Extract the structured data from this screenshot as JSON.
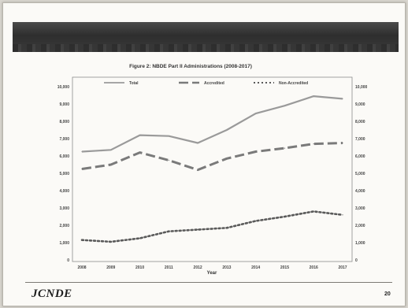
{
  "slide": {
    "logo_text": "JCNDE",
    "logo_subtext": "",
    "copyright": "",
    "page_number": "20"
  },
  "chart_data": {
    "type": "line",
    "title": "Figure 2: NBDE Part II Administrations (2008-2017)",
    "xlabel": "Year",
    "ylabel": "",
    "x": [
      "2008",
      "2009",
      "2010",
      "2011",
      "2012",
      "2013",
      "2014",
      "2015",
      "2016",
      "2017"
    ],
    "ylim": [
      0,
      10000
    ],
    "y_ticks": [
      "0",
      "1,000",
      "2,000",
      "3,000",
      "4,000",
      "5,000",
      "6,000",
      "7,000",
      "8,000",
      "9,000",
      "10,000"
    ],
    "grid": false,
    "legend_position": "top-center",
    "series": [
      {
        "name": "Total",
        "style": "solid",
        "color": "#9a9a9a",
        "values": [
          6250,
          6350,
          7200,
          7150,
          6750,
          7500,
          8450,
          8900,
          9450,
          9300
        ]
      },
      {
        "name": "Accredited",
        "style": "dashed",
        "color": "#7a7a7a",
        "values": [
          5250,
          5500,
          6200,
          5750,
          5200,
          5850,
          6250,
          6450,
          6700,
          6750
        ]
      },
      {
        "name": "Non-Accredited",
        "style": "dotted",
        "color": "#5a5a5a",
        "values": [
          1150,
          1050,
          1250,
          1650,
          1750,
          1850,
          2250,
          2500,
          2800,
          2600
        ]
      }
    ]
  }
}
